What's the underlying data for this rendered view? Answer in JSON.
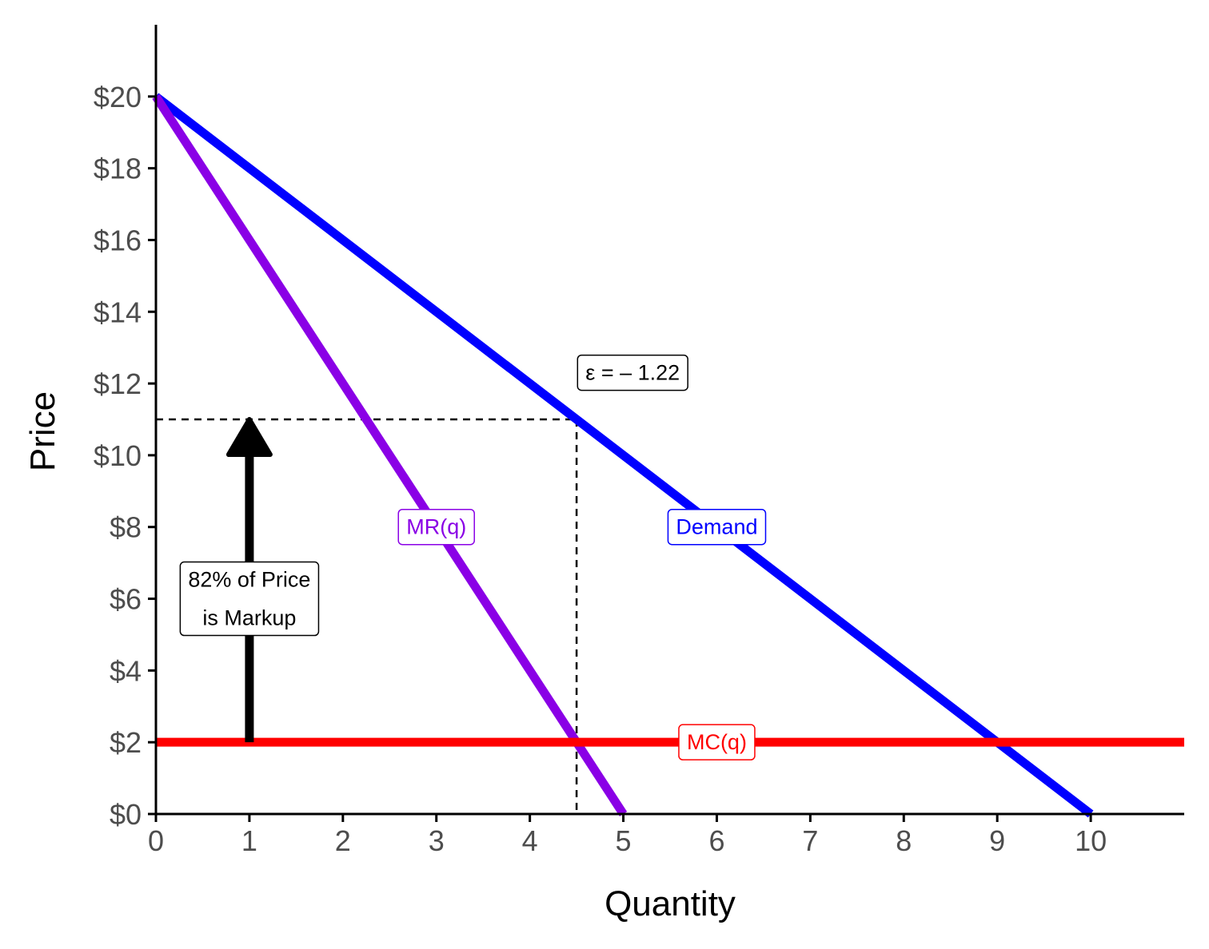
{
  "chart_data": {
    "type": "line",
    "xlabel": "Quantity",
    "ylabel": "Price",
    "xlim": [
      0,
      11
    ],
    "ylim": [
      0,
      22
    ],
    "x_ticks": [
      0,
      1,
      2,
      3,
      4,
      5,
      6,
      7,
      8,
      9,
      10
    ],
    "x_tick_labels": [
      "0",
      "1",
      "2",
      "3",
      "4",
      "5",
      "6",
      "7",
      "8",
      "9",
      "10"
    ],
    "y_ticks": [
      0,
      2,
      4,
      6,
      8,
      10,
      12,
      14,
      16,
      18,
      20
    ],
    "y_tick_labels": [
      "$0",
      "$2",
      "$4",
      "$6",
      "$8",
      "$10",
      "$12",
      "$14",
      "$16",
      "$18",
      "$20"
    ],
    "grid": false,
    "series": [
      {
        "name": "Demand",
        "color": "#0000ff",
        "x": [
          0,
          10
        ],
        "y": [
          20,
          0
        ]
      },
      {
        "name": "MR(q)",
        "color": "#8a00e6",
        "x": [
          0,
          5
        ],
        "y": [
          20,
          0
        ]
      },
      {
        "name": "MC(q)",
        "color": "#ff0000",
        "x": [
          0,
          11
        ],
        "y": [
          2,
          2
        ]
      }
    ],
    "curve_labels": [
      {
        "text": "Demand",
        "series": "Demand",
        "x": 6,
        "y": 8
      },
      {
        "text": "MR(q)",
        "series": "MR(q)",
        "x": 3,
        "y": 8
      },
      {
        "text": "MC(q)",
        "series": "MC(q)",
        "x": 6,
        "y": 2
      }
    ],
    "reference_lines": {
      "q_star": 4.5,
      "p_star": 11,
      "style": "dashed",
      "color": "#000000"
    },
    "markup_arrow": {
      "x": 1,
      "from_y": 2,
      "to_y": 11,
      "color": "#000000"
    },
    "annotations": [
      {
        "id": "elasticity",
        "text": "ε = – 1.22",
        "x": 5.1,
        "y": 12.3
      },
      {
        "id": "markup",
        "lines": [
          "82% of Price",
          "is Markup"
        ],
        "x": 1,
        "y": 6
      }
    ]
  }
}
